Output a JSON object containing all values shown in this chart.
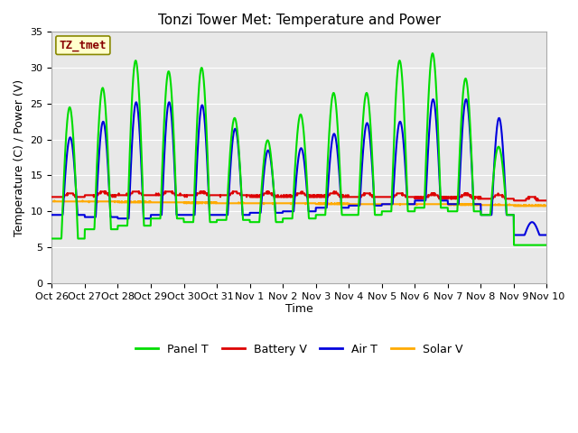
{
  "title": "Tonzi Tower Met: Temperature and Power",
  "xlabel": "Time",
  "ylabel": "Temperature (C) / Power (V)",
  "n_days": 15,
  "ylim": [
    0,
    35
  ],
  "yticks": [
    0,
    5,
    10,
    15,
    20,
    25,
    30,
    35
  ],
  "x_tick_labels": [
    "Oct 26",
    "Oct 27",
    "Oct 28",
    "Oct 29",
    "Oct 30",
    "Oct 31",
    "Nov 1",
    "Nov 2",
    "Nov 3",
    "Nov 4",
    "Nov 5",
    "Nov 6",
    "Nov 7",
    "Nov 8",
    "Nov 9",
    "Nov 10"
  ],
  "legend_labels": [
    "Panel T",
    "Battery V",
    "Air T",
    "Solar V"
  ],
  "legend_colors": [
    "#00dd00",
    "#dd0000",
    "#0000dd",
    "#ffaa00"
  ],
  "annotation_text": "TZ_tmet",
  "annotation_bg": "#ffffcc",
  "annotation_border": "#888800",
  "fig_bg": "#ffffff",
  "plot_bg": "#e8e8e8",
  "grid_color": "#ffffff",
  "panel_t_color": "#00dd00",
  "battery_v_color": "#dd0000",
  "air_t_color": "#0000dd",
  "solar_v_color": "#ffaa00",
  "title_fontsize": 11,
  "tick_fontsize": 8,
  "ylabel_fontsize": 9,
  "xlabel_fontsize": 9,
  "legend_fontsize": 9,
  "annot_fontsize": 9,
  "linewidth": 1.5
}
